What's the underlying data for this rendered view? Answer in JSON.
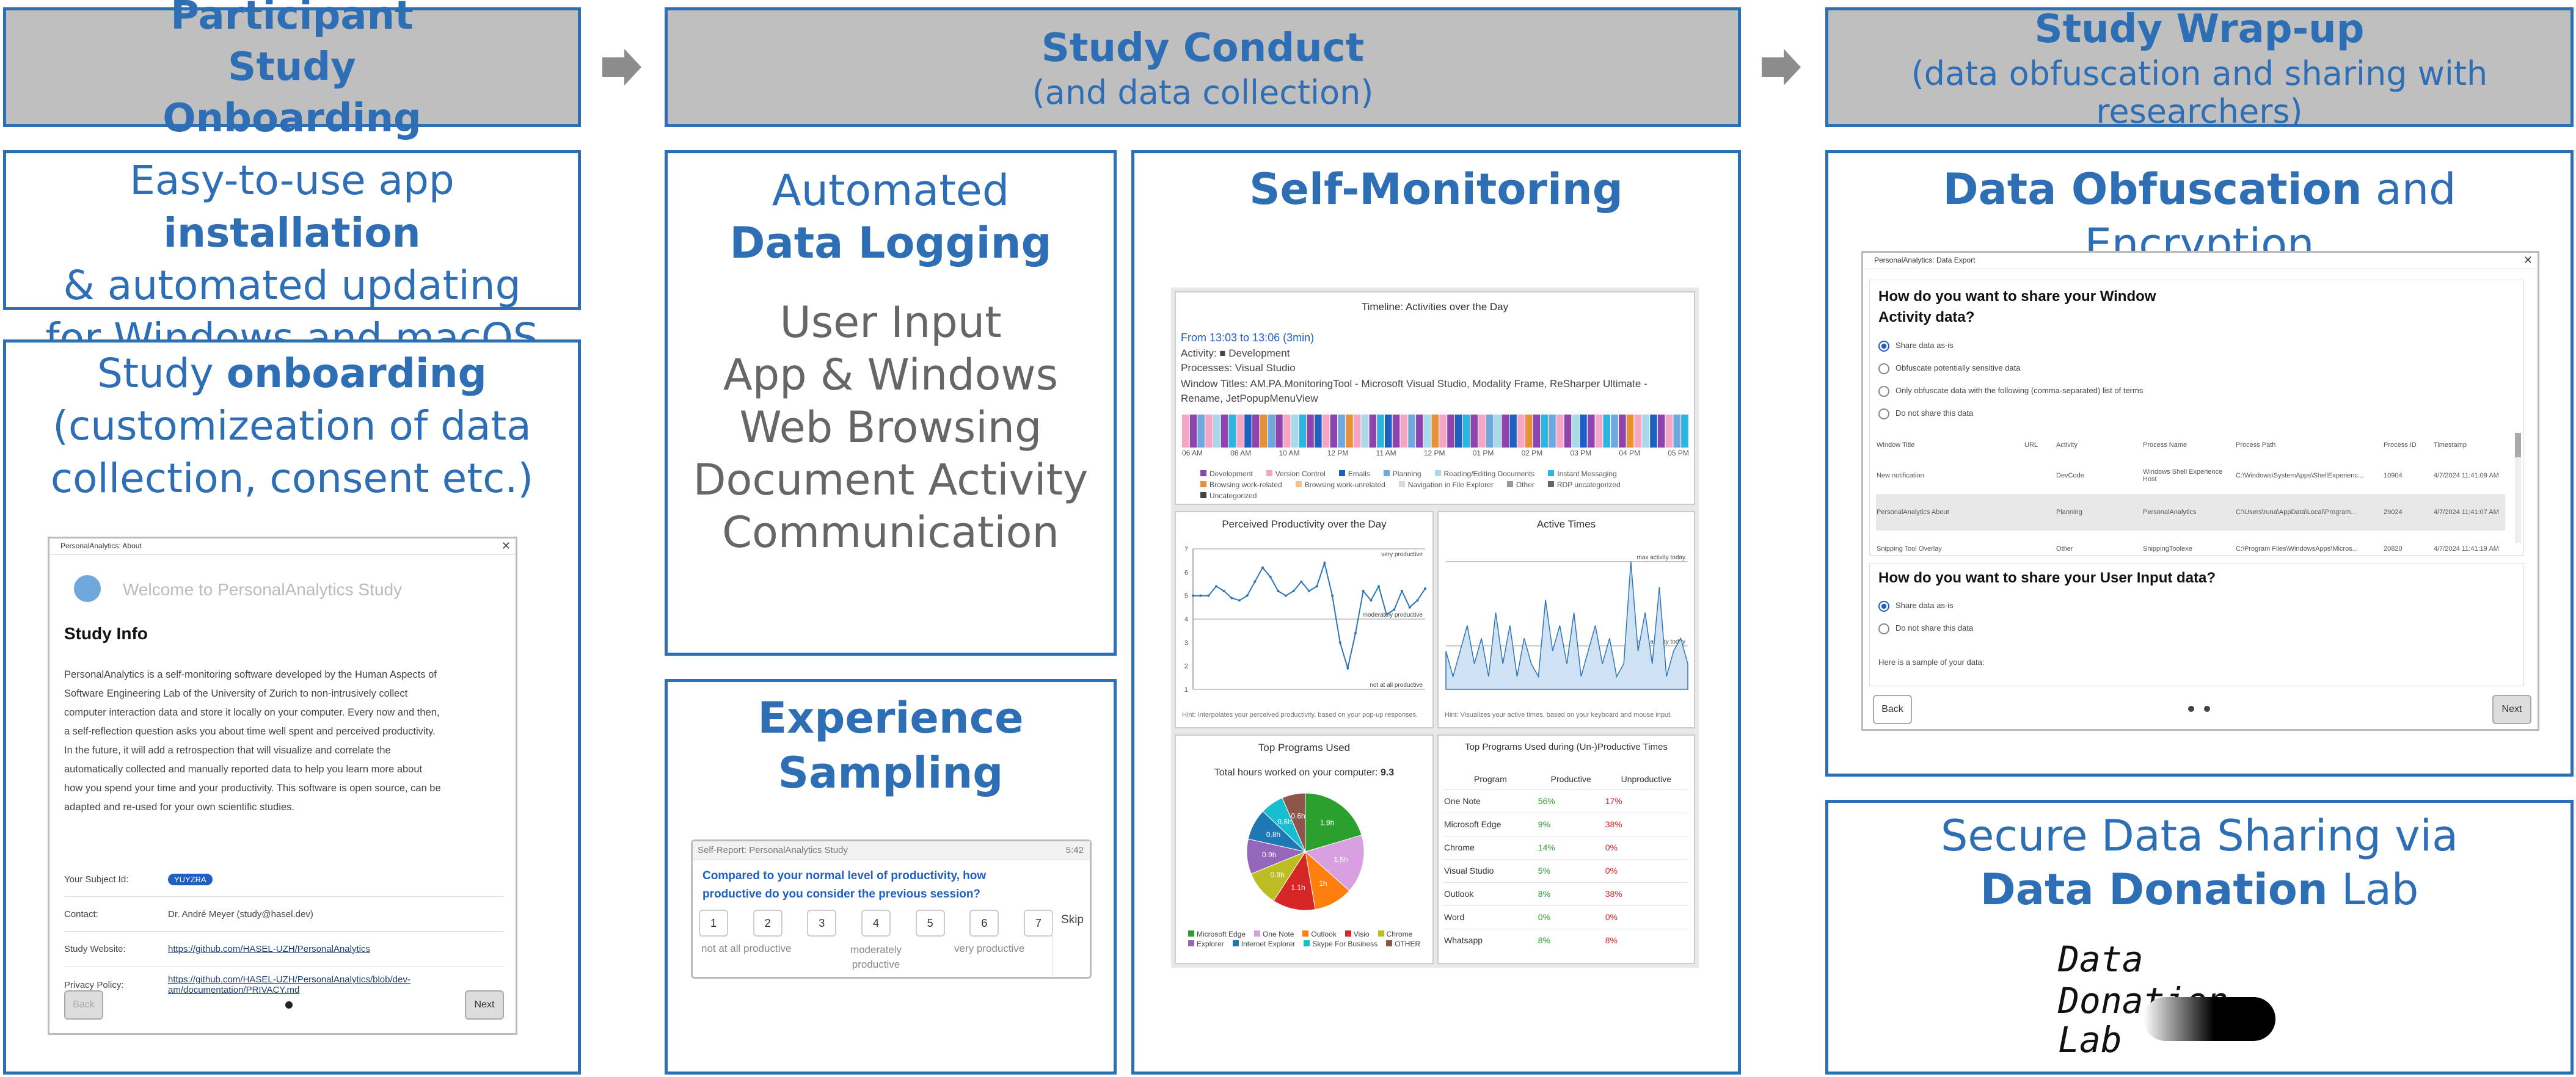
{
  "headers": {
    "onboarding": {
      "title": "Participant Study Onboarding"
    },
    "conduct": {
      "title": "Study Conduct",
      "subtitle": "(and data collection)"
    },
    "wrapup": {
      "title": "Study Wrap-up",
      "subtitle": "(data obfuscation and sharing with researchers)"
    }
  },
  "install": {
    "line1_pre": "Easy-to-use app ",
    "line1_bold": "installation",
    "line2": "& automated updating",
    "line3": "for Windows and macOS"
  },
  "onboard": {
    "title_pre": "Study ",
    "title_bold": "onboarding",
    "line2": "(customizeation of data",
    "line3": "collection, consent etc.)",
    "window": {
      "titlebar": "PersonalAnalytics: About",
      "welcome": "Welcome to PersonalAnalytics Study",
      "heading": "Study Info",
      "body": "PersonalAnalytics is a self-monitoring software developed by the Human Aspects of Software Engineering Lab of the University of Zurich to non-intrusively collect computer interaction data and store it locally on your computer. Every now and then, a self-reflection question asks you about time well spent and perceived productivity. In the future, it will add a retrospection that will visualize and correlate the automatically collected and manually reported data to help you learn more about how you spend your time and your productivity. This software is open source, can be adapted and re-used for your own scientific studies.",
      "rows": [
        {
          "label": "Your Subject Id:",
          "value": "YUYZRA"
        },
        {
          "label": "Contact:",
          "value": "Dr. André Meyer (study@hasel.dev)"
        },
        {
          "label": "Study Website:",
          "value": "https://github.com/HASEL-UZH/PersonalAnalytics"
        },
        {
          "label": "Privacy Policy:",
          "value": "https://github.com/HASEL-UZH/PersonalAnalytics/blob/dev-am/documentation/PRIVACY.md"
        }
      ],
      "back": "Back",
      "next": "Next"
    }
  },
  "logging": {
    "line1": "Automated",
    "line2_bold": "Data Logging",
    "items": [
      "User Input",
      "App & Windows",
      "Web Browsing",
      "Document Activity",
      "Communication"
    ]
  },
  "sampling": {
    "title": "Experience Sampling",
    "window": {
      "titlebar": "Self-Report: PersonalAnalytics Study",
      "time": "5:42",
      "question": "Compared to your normal level of productivity, how productive do you consider the previous session?",
      "scale": [
        "1",
        "2",
        "3",
        "4",
        "5",
        "6",
        "7"
      ],
      "skip": "Skip",
      "low": "not at all productive",
      "mid": "moderately productive",
      "high": "very productive"
    }
  },
  "monitoring": {
    "title": "Self-Monitoring",
    "timeline": {
      "title": "Timeline: Activities over the Day",
      "range": "From 13:03 to 13:06 (3min)",
      "activity": "Activity: ■ Development",
      "processes": "Processes: Visual Studio",
      "windows": "Window Titles: AM.PA.MonitoringTool - Microsoft Visual Studio, Modality Frame, ReSharper Ultimate - Rename, JetPopupMenuView",
      "ticks": [
        "06 AM",
        "08 AM",
        "10 AM",
        "12 PM",
        "11 AM",
        "12 PM",
        "01 PM",
        "02 PM",
        "03 PM",
        "04 PM",
        "05 PM"
      ],
      "legend": [
        {
          "label": "Development",
          "color": "#8e44ad"
        },
        {
          "label": "Version Control",
          "color": "#f4a6c6"
        },
        {
          "label": "Emails",
          "color": "#1f5fbf"
        },
        {
          "label": "Planning",
          "color": "#6fa8dc"
        },
        {
          "label": "Reading/Editing Documents",
          "color": "#a9d8e8"
        },
        {
          "label": "Instant Messaging",
          "color": "#2bb5e0"
        },
        {
          "label": "Browsing work-related",
          "color": "#e69138"
        },
        {
          "label": "Browsing work-unrelated",
          "color": "#f6c38f"
        },
        {
          "label": "Navigation in File Explorer",
          "color": "#d9d9d9"
        },
        {
          "label": "Other",
          "color": "#999999"
        },
        {
          "label": "RDP uncategorized",
          "color": "#666666"
        },
        {
          "label": "Uncategorized",
          "color": "#444444"
        }
      ]
    },
    "productivity": {
      "title": "Perceived Productivity over the Day",
      "top": "very productive",
      "mid": "moderately productive",
      "bottom": "not at all productive",
      "hint": "Hint: Interpolates your perceived productivity, based on your pop-up responses.",
      "yticks": [
        "7",
        "6",
        "5",
        "4",
        "3",
        "2",
        "1"
      ]
    },
    "active": {
      "title": "Active Times",
      "top": "max activity today",
      "mid": "average activity today",
      "hint": "Hint: Visualizes your active times, based on your keyboard and mouse input."
    },
    "programs": {
      "title": "Top Programs Used",
      "total_label": "Total hours worked on your computer:",
      "total_value": "9.3",
      "legend": [
        "Microsoft Edge",
        "One Note",
        "Outlook",
        "Visio",
        "Chrome",
        "Explorer",
        "Internet Explorer",
        "Skype For Business",
        "OTHER"
      ]
    },
    "prod_table": {
      "title": "Top Programs Used during (Un-)Productive Times",
      "headers": [
        "Program",
        "Productive",
        "Unproductive"
      ],
      "rows": [
        [
          "One Note",
          "56%",
          "17%"
        ],
        [
          "Microsoft Edge",
          "9%",
          "38%"
        ],
        [
          "Chrome",
          "14%",
          "0%"
        ],
        [
          "Visual Studio",
          "5%",
          "0%"
        ],
        [
          "Outlook",
          "8%",
          "38%"
        ],
        [
          "Word",
          "0%",
          "0%"
        ],
        [
          "Whatsapp",
          "8%",
          "8%"
        ]
      ]
    }
  },
  "obfuscation": {
    "title_bold": "Data Obfuscation",
    "title_rest": " and Encryption",
    "window": {
      "titlebar": "PersonalAnalytics: Data Export",
      "q1": "How do you want to share your Window Activity data?",
      "options1": [
        "Share data as-is",
        "Obfuscate potentially sensitive data",
        "Only obfuscate data with the following (comma-separated) list of terms",
        "Do not share this data"
      ],
      "table_headers": [
        "Window Title",
        "URL",
        "Activity",
        "Process Name",
        "Process Path",
        "Process ID",
        "Timestamp"
      ],
      "table_rows": [
        [
          "New notification",
          "",
          "DevCode",
          "Windows Shell Experience Host",
          "C:\\Windows\\SystemApps\\ShellExperienc...",
          "10904",
          "4/7/2024 11:41:09 AM"
        ],
        [
          "PersonalAnalytics About",
          "",
          "Planning",
          "PersonalAnalytics",
          "C:\\Users\\runa\\AppData\\Local\\Program...",
          "29024",
          "4/7/2024 11:41:07 AM"
        ],
        [
          "Snipping Tool Overlay",
          "",
          "Other",
          "SnippingToolexe",
          "C:\\Program Files\\WindowsApps\\Micros...",
          "20820",
          "4/7/2024 11:41:19 AM"
        ]
      ],
      "q2": "How do you want to share your User Input data?",
      "options2": [
        "Share data as-is",
        "Do not share this data"
      ],
      "sample": "Here is a sample of your data:",
      "back": "Back",
      "next": "Next"
    }
  },
  "sharing": {
    "line1": "Secure Data Sharing via",
    "line2_bold": "Data Donation",
    "line2_rest": " Lab",
    "logo_text1": "Data Donation",
    "logo_text2": "Lab"
  },
  "chart_data": [
    {
      "type": "line",
      "title": "Perceived Productivity over the Day",
      "x": [
        0,
        1,
        2,
        3,
        4,
        5,
        6,
        7,
        8,
        9,
        10,
        11,
        12,
        13,
        14,
        15,
        16,
        17,
        18,
        19,
        20,
        21,
        22,
        23,
        24,
        25,
        26,
        27,
        28,
        29,
        30
      ],
      "values": [
        5,
        5,
        5,
        5.4,
        5.2,
        4.9,
        4.8,
        5,
        5.6,
        6.2,
        5.8,
        5.2,
        5,
        5.2,
        5.6,
        5.2,
        5.4,
        6.4,
        5,
        3,
        1.9,
        3.4,
        5.2,
        4.8,
        5.4,
        4.2,
        4.4,
        5.2,
        4.5,
        4.8,
        5.3
      ],
      "ylim": [
        1,
        7
      ]
    },
    {
      "type": "area",
      "title": "Active Times",
      "values": [
        3,
        1,
        3,
        5,
        2,
        4,
        1,
        6,
        2,
        5,
        1,
        4,
        2,
        1,
        7,
        3,
        5,
        2,
        6,
        1,
        3,
        5,
        2,
        4,
        1,
        2,
        10,
        3,
        6,
        2,
        8,
        1,
        3,
        4,
        2
      ],
      "ylim": [
        0,
        11
      ]
    },
    {
      "type": "pie",
      "title": "Top Programs Used",
      "categories": [
        "Microsoft Edge",
        "One Note",
        "Outlook",
        "Visio",
        "Chrome",
        "Explorer",
        "Internet Explorer",
        "Skype For Business",
        "OTHER"
      ],
      "values": [
        1.9,
        1.5,
        1.0,
        1.1,
        0.9,
        0.9,
        0.8,
        0.6,
        0.6
      ],
      "labels": [
        "1.9h",
        "1.5h",
        "1h",
        "1.1h",
        "0.9h",
        "0.9h",
        "0.8h",
        "0.6h",
        "0.6h"
      ]
    }
  ],
  "colors": {
    "accent": "#2e6eb5",
    "header_bg": "#bfbfbf"
  }
}
